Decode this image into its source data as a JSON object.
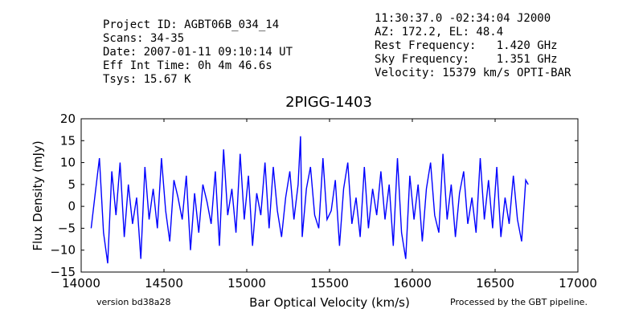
{
  "header_left": [
    "Project ID: AGBT06B_034_14",
    "Scans: 34-35",
    "Date: 2007-01-11 09:10:14 UT",
    "Eff Int Time: 0h 4m 46.6s",
    "Tsys: 15.67 K"
  ],
  "header_right": [
    "11:30:37.0 -02:34:04 J2000",
    "AZ: 172.2, EL: 48.4",
    "Rest Frequency:   1.420 GHz",
    "Sky Frequency:    1.351 GHz",
    "Velocity: 15379 km/s OPTI-BAR"
  ],
  "footer": {
    "version": "version bd38a28",
    "pipeline": "Processed by the GBT pipeline."
  },
  "colors": {
    "line": "#0000ff",
    "pipeline_text": "#ff3333",
    "version_text": "#333333"
  },
  "chart_data": {
    "type": "line",
    "title": "2PIGG-1403",
    "xlabel": "Bar Optical Velocity (km/s)",
    "ylabel": "Flux Density (mJy)",
    "xlim": [
      14000,
      17000
    ],
    "ylim": [
      -15,
      20
    ],
    "xticks": [
      "14000",
      "14500",
      "15000",
      "15500",
      "16000",
      "16500",
      "17000"
    ],
    "yticks": [
      "−15",
      "−10",
      "−5",
      "0",
      "5",
      "10",
      "15",
      "20"
    ],
    "grid": false,
    "series": [
      {
        "x": [
          14060,
          14085,
          14110,
          14135,
          14160,
          14185,
          14210,
          14235,
          14260,
          14285,
          14310,
          14335,
          14360,
          14385,
          14410,
          14435,
          14460,
          14485,
          14510,
          14535,
          14560,
          14585,
          14610,
          14635,
          14660,
          14685,
          14710,
          14735,
          14760,
          14785,
          14810,
          14835,
          14860,
          14885,
          14910,
          14935,
          14960,
          14985,
          15010,
          15035,
          15060,
          15085,
          15110,
          15135,
          15160,
          15185,
          15210,
          15235,
          15260,
          15285,
          15310,
          15325,
          15335,
          15360,
          15385,
          15410,
          15435,
          15460,
          15485,
          15510,
          15535,
          15560,
          15585,
          15610,
          15635,
          15660,
          15685,
          15710,
          15735,
          15760,
          15785,
          15810,
          15835,
          15860,
          15885,
          15910,
          15935,
          15960,
          15985,
          16010,
          16035,
          16060,
          16085,
          16110,
          16135,
          16160,
          16185,
          16210,
          16235,
          16260,
          16285,
          16310,
          16335,
          16360,
          16385,
          16410,
          16435,
          16460,
          16485,
          16510,
          16535,
          16560,
          16585,
          16610,
          16635,
          16660,
          16685,
          16700
        ],
        "y": [
          -5,
          3,
          11,
          -6,
          -13,
          8,
          -2,
          10,
          -7,
          5,
          -4,
          2,
          -12,
          9,
          -3,
          4,
          -5,
          11,
          -1,
          -8,
          6,
          2,
          -3,
          7,
          -10,
          3,
          -6,
          5,
          1,
          -4,
          8,
          -9,
          13,
          -2,
          4,
          -6,
          12,
          -3,
          7,
          -9,
          3,
          -2,
          10,
          -5,
          9,
          -1,
          -7,
          2,
          8,
          -3,
          5,
          16,
          -7,
          4,
          9,
          -2,
          -5,
          11,
          -3,
          -1,
          6,
          -9,
          4,
          10,
          -4,
          2,
          -7,
          9,
          -5,
          4,
          -2,
          8,
          -3,
          5,
          -9,
          11,
          -6,
          -12,
          7,
          -3,
          5,
          -8,
          4,
          10,
          -2,
          -6,
          12,
          -3,
          5,
          -7,
          3,
          8,
          -4,
          2,
          -6,
          11,
          -3,
          6,
          -5,
          9,
          -7,
          2,
          -4,
          7,
          -3,
          -8,
          6,
          5
        ]
      }
    ]
  }
}
